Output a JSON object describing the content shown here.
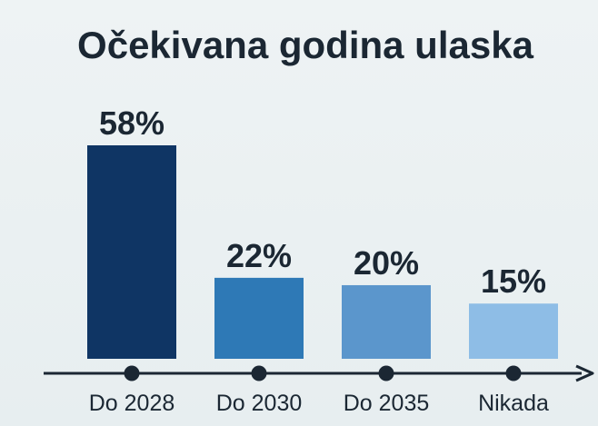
{
  "chart_data": {
    "type": "bar",
    "title": "Očekivana godina ulaska",
    "categories": [
      "Do 2028",
      "Do 2030",
      "Do 2035",
      "Nikada"
    ],
    "values": [
      58,
      22,
      20,
      15
    ],
    "value_labels": [
      "58%",
      "22%",
      "20%",
      "15%"
    ],
    "ylim": [
      0,
      60
    ],
    "colors": [
      "#0f3564",
      "#2e79b6",
      "#5b96cc",
      "#8ebde6"
    ],
    "axis_color": "#1b2733",
    "grid": false,
    "legend": "none"
  }
}
